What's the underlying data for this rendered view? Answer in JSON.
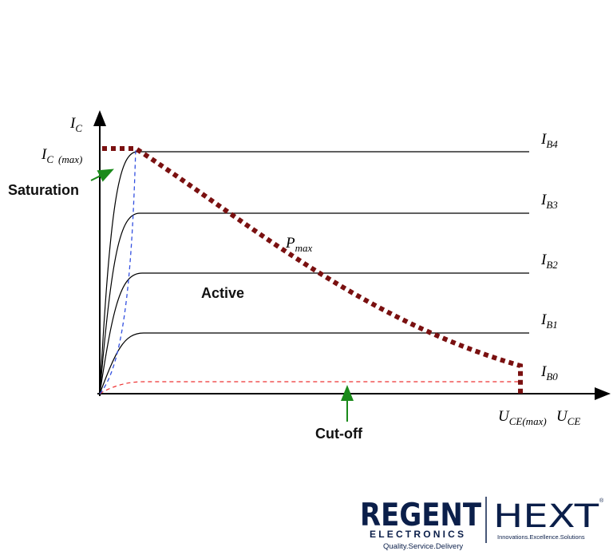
{
  "diagram": {
    "ic": {
      "symbol": "I",
      "subscript": "C"
    },
    "ic_max": {
      "symbol": "I",
      "subscript": "C",
      "qualifier": "(max)"
    },
    "saturation": "Saturation",
    "pmax": {
      "symbol": "P",
      "subscript": "max"
    },
    "active": "Active",
    "curves": [
      {
        "symbol": "I",
        "subscript": "B4"
      },
      {
        "symbol": "I",
        "subscript": "B3"
      },
      {
        "symbol": "I",
        "subscript": "B2"
      },
      {
        "symbol": "I",
        "subscript": "B1"
      },
      {
        "symbol": "I",
        "subscript": "B0"
      }
    ],
    "uce_max": {
      "symbol": "U",
      "subscript": "CE(max)"
    },
    "uce": {
      "symbol": "U",
      "subscript": "CE"
    },
    "cutoff": "Cut-off"
  },
  "logo": {
    "left": "REGENT",
    "left_sub": "ELECTRONICS",
    "left_tagline": "Quality.Service.Delivery",
    "right": "HEXT",
    "right_tagline": "Innovations.Excellence.Solutions",
    "mark": "®"
  }
}
